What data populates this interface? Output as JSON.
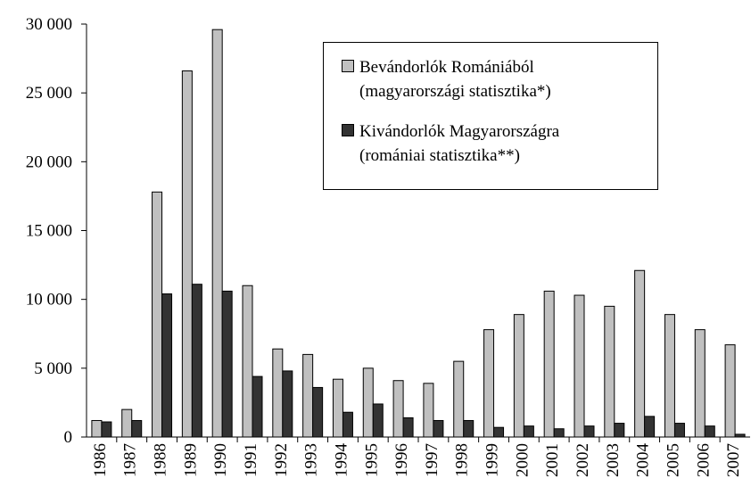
{
  "chart_data": {
    "type": "bar",
    "categories": [
      "1986",
      "1987",
      "1988",
      "1989",
      "1990",
      "1991",
      "1992",
      "1993",
      "1994",
      "1995",
      "1996",
      "1997",
      "1998",
      "1999",
      "2000",
      "2001",
      "2002",
      "2003",
      "2004",
      "2005",
      "2006",
      "2007"
    ],
    "series": [
      {
        "name": "Bevándorlók Romániából (magyarországi statisztika*)",
        "color": "#c0c0c0",
        "values": [
          1200,
          2000,
          17800,
          26600,
          29600,
          11000,
          6400,
          6000,
          4200,
          5000,
          4100,
          3900,
          5500,
          7800,
          8900,
          10600,
          10300,
          9500,
          12100,
          8900,
          7800,
          6700
        ]
      },
      {
        "name": "Kivándorlók Magyarországra (romániai statisztika**)",
        "color": "#333333",
        "values": [
          1100,
          1200,
          10400,
          11100,
          10600,
          4400,
          4800,
          3600,
          1800,
          2400,
          1400,
          1200,
          1200,
          700,
          800,
          600,
          800,
          1000,
          1500,
          1000,
          800,
          200
        ]
      }
    ],
    "ylim": [
      0,
      30000
    ],
    "yticks": [
      0,
      {
        "value": 5000,
        "label": "5 000"
      },
      {
        "value": 10000,
        "label": "10 000"
      },
      {
        "value": 15000,
        "label": "15 000"
      },
      {
        "value": 20000,
        "label": "20 000"
      },
      {
        "value": 25000,
        "label": "25 000"
      },
      {
        "value": 30000,
        "label": "30 000"
      }
    ],
    "grid": false,
    "legend": "top-right"
  }
}
